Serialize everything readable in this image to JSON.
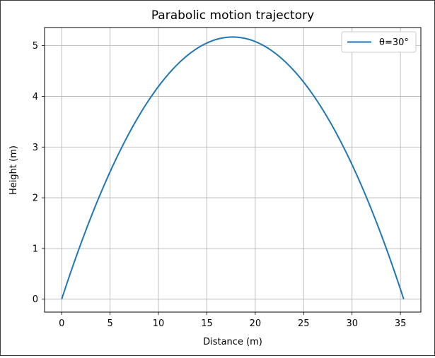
{
  "chart_data": {
    "type": "line",
    "title": "Parabolic motion trajectory",
    "xlabel": "Distance (m)",
    "ylabel": "Height (m)",
    "xlim": [
      -1.77,
      37.11
    ],
    "ylim": [
      -0.255,
      5.357
    ],
    "xticks": [
      "0",
      "5",
      "10",
      "15",
      "20",
      "25",
      "30",
      "35"
    ],
    "yticks": [
      "0",
      "1",
      "2",
      "3",
      "4",
      "5"
    ],
    "grid": true,
    "legend": {
      "position": "top-right"
    },
    "series": [
      {
        "name": "θ=30°",
        "color": "#1f77b4",
        "x": [
          0,
          2.5,
          5,
          7.5,
          10,
          12.5,
          15,
          17.67,
          20,
          22.5,
          25,
          27.5,
          30,
          32.5,
          35.34
        ],
        "y": [
          0,
          1.34,
          2.49,
          3.46,
          4.23,
          4.8,
          5.17,
          5.1,
          5.05,
          4.72,
          4.2,
          3.47,
          2.53,
          1.39,
          0
        ]
      }
    ]
  }
}
